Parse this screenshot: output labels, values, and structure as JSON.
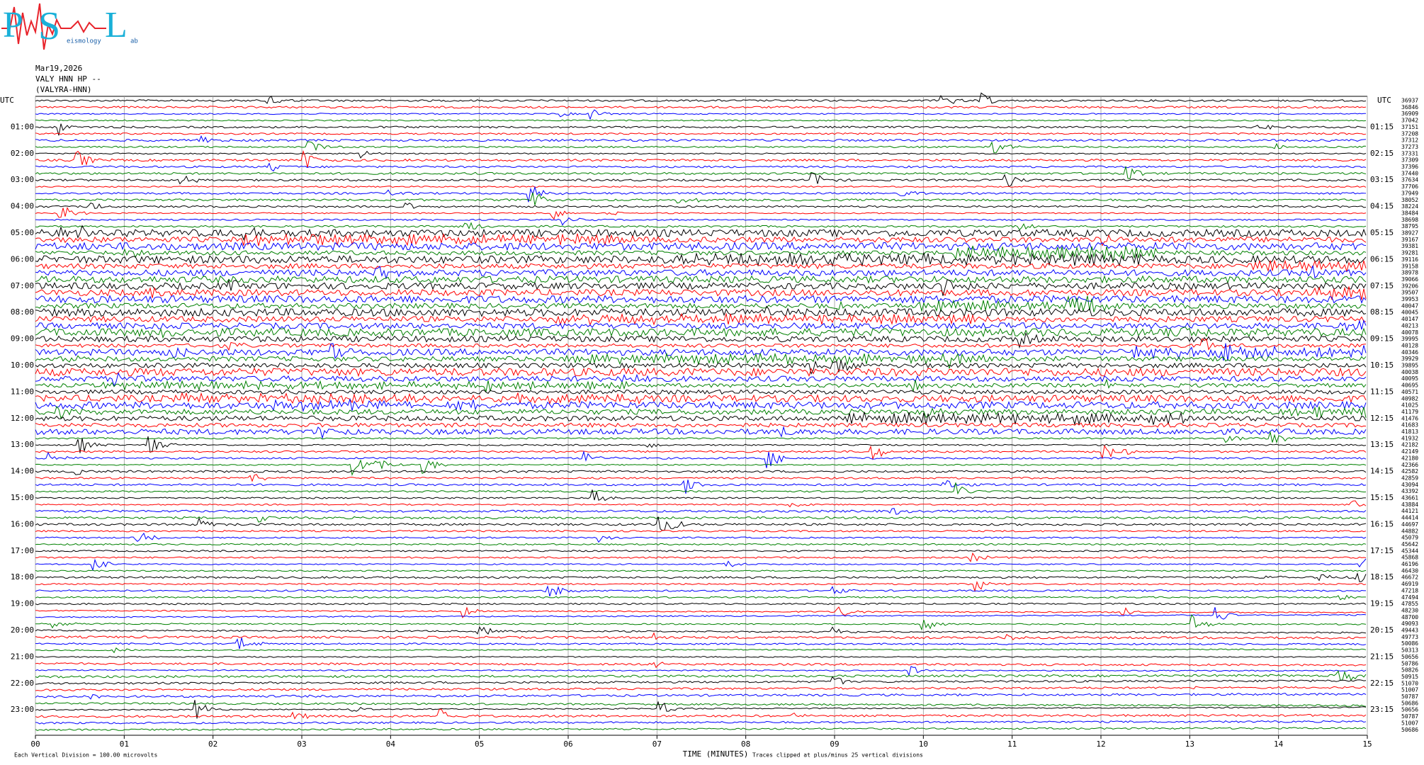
{
  "chart_data": {
    "type": "helicorder",
    "logo": {
      "letters": [
        "P",
        "S",
        "L"
      ],
      "words": [
        "eismology",
        "ab"
      ]
    },
    "header": [
      "Mar19,2026",
      "VALY HNN HP --",
      "(VALYRA-HNN)"
    ],
    "time_zone_label": "UTC",
    "colors": [
      "#000000",
      "#ff0000",
      "#0000ff",
      "#008000"
    ],
    "rows": 96,
    "left_labels": [
      "01:00",
      "02:00",
      "03:00",
      "04:00",
      "05:00",
      "06:00",
      "07:00",
      "08:00",
      "09:00",
      "10:00",
      "11:00",
      "12:00",
      "13:00",
      "14:00",
      "15:00",
      "16:00",
      "17:00",
      "18:00",
      "19:00",
      "20:00",
      "21:00",
      "22:00",
      "23:00"
    ],
    "right_labels": [
      "01:15",
      "02:15",
      "03:15",
      "04:15",
      "05:15",
      "06:15",
      "07:15",
      "08:15",
      "09:15",
      "10:15",
      "11:15",
      "12:15",
      "13:15",
      "14:15",
      "15:15",
      "16:15",
      "17:15",
      "18:15",
      "19:15",
      "20:15",
      "21:15",
      "22:15",
      "23:15"
    ],
    "row_values": [
      36937,
      36846,
      36909,
      37042,
      37151,
      37208,
      37312,
      37273,
      37331,
      37309,
      37396,
      37440,
      37634,
      37706,
      37949,
      38052,
      38224,
      38484,
      38698,
      38795,
      38927,
      39167,
      39381,
      39281,
      39116,
      39158,
      38978,
      39066,
      39206,
      39507,
      39953,
      40047,
      40045,
      40147,
      40213,
      40078,
      39995,
      40128,
      40346,
      39929,
      39895,
      40038,
      40095,
      40695,
      40571,
      40982,
      41025,
      41179,
      41476,
      41683,
      41813,
      41932,
      42182,
      42149,
      42180,
      42366,
      42582,
      42859,
      43094,
      43392,
      43661,
      43884,
      44121,
      44414,
      44697,
      44882,
      45079,
      45642,
      45344,
      45868,
      46196,
      46430,
      46672,
      46919,
      47218,
      47494,
      47855,
      48230,
      48700,
      49093,
      49443,
      49773,
      50086,
      50313,
      50656,
      50786,
      50826,
      50915,
      51070,
      51007,
      50787,
      50686,
      50656,
      50787,
      51007,
      50686
    ],
    "xlim": [
      0,
      15
    ],
    "xticks": [
      {
        "value": 0,
        "label": "00"
      },
      {
        "value": 1,
        "label": "01"
      },
      {
        "value": 2,
        "label": "02"
      },
      {
        "value": 3,
        "label": "03"
      },
      {
        "value": 4,
        "label": "04"
      },
      {
        "value": 5,
        "label": "05"
      },
      {
        "value": 6,
        "label": "06"
      },
      {
        "value": 7,
        "label": "07"
      },
      {
        "value": 8,
        "label": "08"
      },
      {
        "value": 9,
        "label": "09"
      },
      10,
      11,
      12,
      13,
      14,
      15
    ],
    "xlabel": "TIME (MINUTES)",
    "scale_note": "Each Vertical Division =  100.00 microvolts",
    "clip_note": "Traces clipped at plus/minus 25 vertical divisions"
  }
}
